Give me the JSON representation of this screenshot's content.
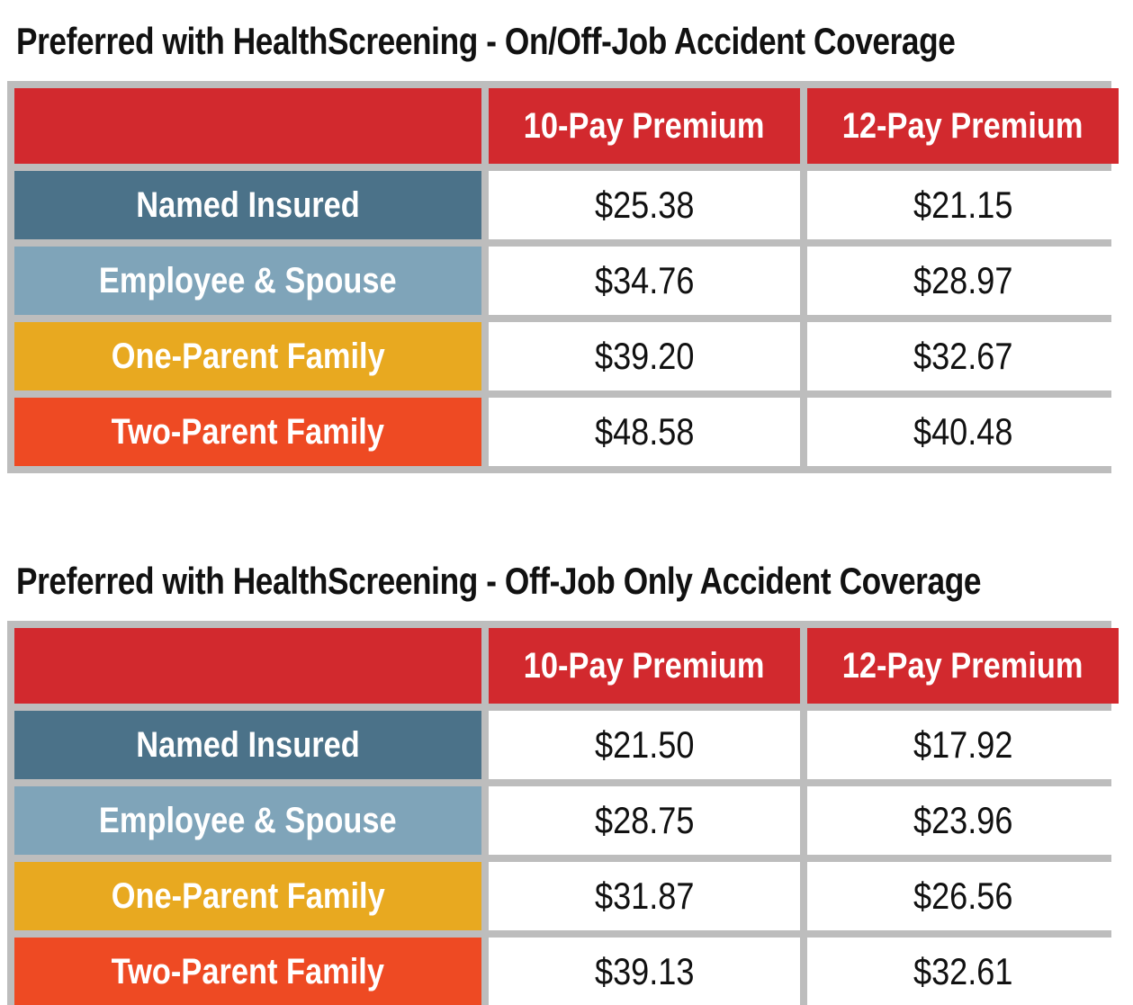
{
  "colors": {
    "header_red": "#D2292E",
    "named_insured_slate": "#4B7289",
    "employee_spouse_blue": "#7FA4B9",
    "one_parent_gold": "#E8A920",
    "two_parent_orange": "#EE4A23",
    "grid_gray": "#BDBDBD",
    "cell_white": "#FFFFFF",
    "text_black": "#111111",
    "text_white": "#FFFFFF"
  },
  "tables": [
    {
      "title": "Preferred with HealthScreening - On/Off-Job Accident Coverage",
      "columns": [
        "10-Pay Premium",
        "12-Pay Premium"
      ],
      "rows": [
        {
          "label": "Named Insured",
          "values": [
            "$25.38",
            "$21.15"
          ]
        },
        {
          "label": "Employee & Spouse",
          "values": [
            "$34.76",
            "$28.97"
          ]
        },
        {
          "label": "One-Parent Family",
          "values": [
            "$39.20",
            "$32.67"
          ]
        },
        {
          "label": "Two-Parent Family",
          "values": [
            "$48.58",
            "$40.48"
          ]
        }
      ]
    },
    {
      "title": "Preferred with HealthScreening - Off-Job Only Accident Coverage",
      "columns": [
        "10-Pay Premium",
        "12-Pay Premium"
      ],
      "rows": [
        {
          "label": "Named Insured",
          "values": [
            "$21.50",
            "$17.92"
          ]
        },
        {
          "label": "Employee & Spouse",
          "values": [
            "$28.75",
            "$23.96"
          ]
        },
        {
          "label": "One-Parent Family",
          "values": [
            "$31.87",
            "$26.56"
          ]
        },
        {
          "label": "Two-Parent Family",
          "values": [
            "$39.13",
            "$32.61"
          ]
        }
      ]
    }
  ]
}
